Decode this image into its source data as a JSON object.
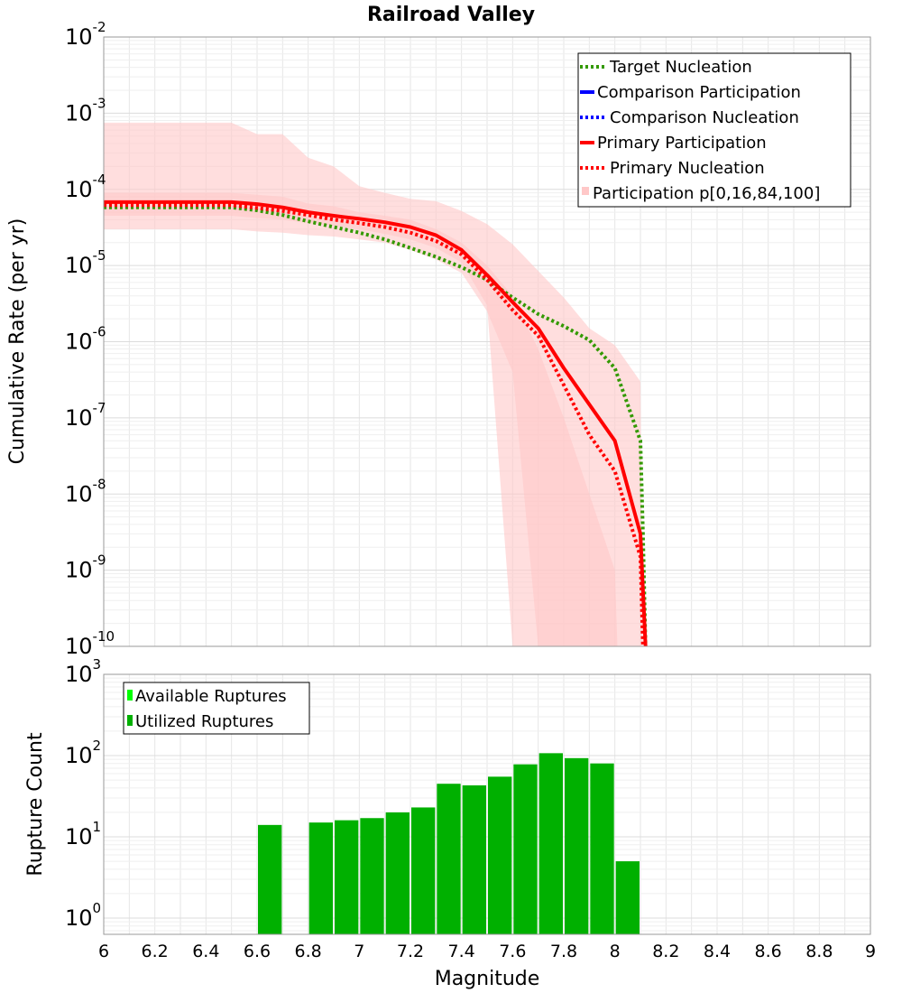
{
  "chart_data": [
    {
      "type": "line",
      "title": "Railroad Valley",
      "xlabel": "Magnitude",
      "ylabel": "Cumulative Rate (per yr)",
      "yscale": "log",
      "xlim": [
        6,
        9
      ],
      "ylim_exp": [
        -10,
        -2
      ],
      "x_ticks": [
        "6",
        "6.2",
        "6.4",
        "6.6",
        "6.8",
        "7",
        "7.2",
        "7.4",
        "7.6",
        "7.8",
        "8",
        "8.2",
        "8.4",
        "8.6",
        "8.8",
        "9"
      ],
      "y_ticks": [
        {
          "base": "10",
          "exp": "-10"
        },
        {
          "base": "10",
          "exp": "-9"
        },
        {
          "base": "10",
          "exp": "-8"
        },
        {
          "base": "10",
          "exp": "-7"
        },
        {
          "base": "10",
          "exp": "-6"
        },
        {
          "base": "10",
          "exp": "-5"
        },
        {
          "base": "10",
          "exp": "-4"
        },
        {
          "base": "10",
          "exp": "-3"
        },
        {
          "base": "10",
          "exp": "-2"
        }
      ],
      "grid": true,
      "legend_position": "top-right",
      "legend": [
        {
          "label": "Target Nucleation",
          "color": "#339900",
          "style": "dotted"
        },
        {
          "label": "Comparison Participation",
          "color": "#0000ff",
          "style": "solid"
        },
        {
          "label": "Comparison Nucleation",
          "color": "#0000ff",
          "style": "dotted"
        },
        {
          "label": "Primary Participation",
          "color": "#ff0000",
          "style": "solid"
        },
        {
          "label": "Primary Nucleation",
          "color": "#ff0000",
          "style": "dotted"
        },
        {
          "label": "Participation p[0,16,84,100]",
          "color": "#ffc8c8",
          "style": "fill"
        }
      ],
      "bands": [
        {
          "name": "p0-p100",
          "color": "#ffc8c8",
          "opacity": 0.6,
          "x": [
            6.0,
            6.5,
            6.6,
            6.7,
            6.8,
            6.9,
            7.0,
            7.1,
            7.2,
            7.3,
            7.4,
            7.5,
            7.6,
            7.7,
            7.8,
            7.9,
            8.0,
            8.1,
            8.11
          ],
          "upper": [
            0.00075,
            0.00075,
            0.00053,
            0.00053,
            0.00026,
            0.0002,
            0.00011,
            9e-05,
            7.5e-05,
            7e-05,
            5.2e-05,
            3.5e-05,
            1.9e-05,
            8.5e-06,
            3.8e-06,
            1.5e-06,
            9e-07,
            3e-07,
            1e-10
          ],
          "lower": [
            3e-05,
            3e-05,
            2.8e-05,
            2.7e-05,
            2.5e-05,
            2.4e-05,
            2.2e-05,
            2e-05,
            1.6e-05,
            1.2e-05,
            8e-06,
            2.5e-06,
            4e-07,
            1e-10,
            1e-10,
            1e-10,
            1e-10,
            1e-10,
            1e-10
          ]
        },
        {
          "name": "p16-p84",
          "color": "#ffc8c8",
          "opacity": 0.6,
          "x": [
            6.0,
            6.5,
            6.6,
            6.7,
            6.8,
            6.9,
            7.0,
            7.1,
            7.2,
            7.3,
            7.4,
            7.5,
            7.6,
            7.7,
            7.8,
            7.9,
            8.0,
            8.01
          ],
          "upper": [
            9e-05,
            9e-05,
            8.5e-05,
            8e-05,
            6.5e-05,
            6e-05,
            5e-05,
            4.5e-05,
            4e-05,
            3e-05,
            2e-05,
            1e-05,
            4e-06,
            8e-07,
            1e-07,
            1e-08,
            1e-09,
            1e-10
          ],
          "lower": [
            4.5e-05,
            4.5e-05,
            4.2e-05,
            4e-05,
            3.6e-05,
            3.3e-05,
            3e-05,
            2.6e-05,
            2.2e-05,
            1.7e-05,
            1.1e-05,
            3e-06,
            1e-10,
            1e-10,
            1e-10,
            1e-10,
            1e-10,
            1e-10
          ]
        }
      ],
      "series": [
        {
          "name": "Target Nucleation",
          "color": "#339900",
          "style": "dotted",
          "x": [
            6.0,
            6.5,
            6.6,
            6.7,
            6.8,
            6.9,
            7.0,
            7.1,
            7.2,
            7.3,
            7.4,
            7.5,
            7.6,
            7.7,
            7.8,
            7.9,
            8.0,
            8.1,
            8.11,
            8.12
          ],
          "y": [
            5.8e-05,
            5.8e-05,
            5.3e-05,
            4.6e-05,
            3.8e-05,
            3.2e-05,
            2.7e-05,
            2.2e-05,
            1.7e-05,
            1.3e-05,
            9.5e-06,
            6.5e-06,
            3.8e-06,
            2.3e-06,
            1.6e-06,
            1.05e-06,
            4.5e-07,
            5e-08,
            3e-09,
            1e-10
          ]
        },
        {
          "name": "Primary Nucleation",
          "color": "#ff0000",
          "style": "dotted",
          "x": [
            6.0,
            6.5,
            6.6,
            6.7,
            6.8,
            6.9,
            7.0,
            7.1,
            7.2,
            7.3,
            7.4,
            7.5,
            7.6,
            7.7,
            7.8,
            7.9,
            8.0,
            8.1,
            8.11
          ],
          "y": [
            6.2e-05,
            6.2e-05,
            5.7e-05,
            5.2e-05,
            4.6e-05,
            4e-05,
            3.6e-05,
            3.2e-05,
            2.7e-05,
            2.1e-05,
            1.4e-05,
            6.5e-06,
            2.6e-06,
            1.2e-06,
            2.7e-07,
            6e-08,
            2e-08,
            1.5e-09,
            1e-10
          ]
        },
        {
          "name": "Primary Participation",
          "color": "#ff0000",
          "style": "solid",
          "x": [
            6.0,
            6.5,
            6.6,
            6.7,
            6.8,
            6.9,
            7.0,
            7.1,
            7.2,
            7.3,
            7.4,
            7.5,
            7.6,
            7.7,
            7.8,
            7.9,
            8.0,
            8.1,
            8.12
          ],
          "y": [
            6.8e-05,
            6.8e-05,
            6.4e-05,
            5.8e-05,
            5e-05,
            4.5e-05,
            4.1e-05,
            3.7e-05,
            3.2e-05,
            2.5e-05,
            1.6e-05,
            7.5e-06,
            3.3e-06,
            1.5e-06,
            4.5e-07,
            1.5e-07,
            5e-08,
            3e-09,
            1e-10
          ]
        }
      ]
    },
    {
      "type": "bar",
      "xlabel": "Magnitude",
      "ylabel": "Rupture Count",
      "yscale": "log",
      "xlim": [
        6,
        9
      ],
      "ylim_exp": [
        -0.2,
        3
      ],
      "x_ticks": [
        "6",
        "6.2",
        "6.4",
        "6.6",
        "6.8",
        "7",
        "7.2",
        "7.4",
        "7.6",
        "7.8",
        "8",
        "8.2",
        "8.4",
        "8.6",
        "8.8",
        "9"
      ],
      "y_ticks": [
        {
          "base": "10",
          "exp": "0"
        },
        {
          "base": "10",
          "exp": "1"
        },
        {
          "base": "10",
          "exp": "2"
        },
        {
          "base": "10",
          "exp": "3"
        }
      ],
      "grid": true,
      "legend_position": "top-left",
      "legend": [
        {
          "label": "Available Ruptures",
          "color": "#00ff00"
        },
        {
          "label": "Utilized Ruptures",
          "color": "#00b000"
        }
      ],
      "bar_color": "#00b000",
      "series": [
        {
          "name": "Utilized Ruptures",
          "x": [
            6.65,
            6.85,
            6.95,
            7.05,
            7.15,
            7.25,
            7.35,
            7.45,
            7.55,
            7.65,
            7.75,
            7.85,
            7.95,
            8.05
          ],
          "values": [
            14,
            15,
            16,
            17,
            20,
            23,
            45,
            43,
            55,
            78,
            107,
            93,
            80,
            5
          ]
        }
      ]
    }
  ]
}
